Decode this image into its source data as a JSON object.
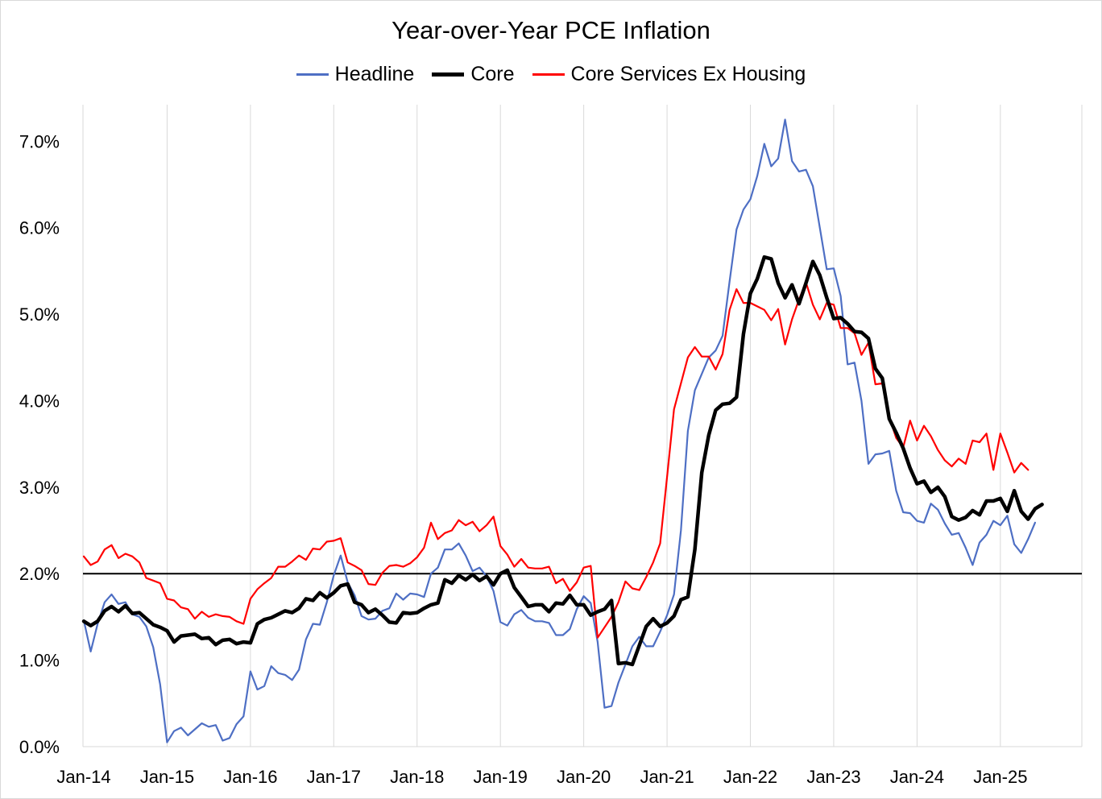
{
  "chart_data": {
    "type": "line",
    "title": "Year-over-Year PCE Inflation",
    "xlabel": "",
    "ylabel": "",
    "x_start": "2014-01",
    "x_tick_labels": [
      "Jan-14",
      "Jan-15",
      "Jan-16",
      "Jan-17",
      "Jan-18",
      "Jan-19",
      "Jan-20",
      "Jan-21",
      "Jan-22",
      "Jan-23",
      "Jan-24",
      "Jan-25"
    ],
    "y_tick_labels": [
      "0.0%",
      "1.0%",
      "2.0%",
      "3.0%",
      "4.0%",
      "5.0%",
      "6.0%",
      "7.0%"
    ],
    "ylim": [
      0,
      0.075
    ],
    "reference_line": 0.02,
    "grid": "vertical",
    "legend": "top-center",
    "series": [
      {
        "name": "Headline",
        "color": "#4e6fc4",
        "values": [
          1.46,
          1.1,
          1.42,
          1.67,
          1.76,
          1.65,
          1.67,
          1.53,
          1.5,
          1.39,
          1.15,
          0.72,
          0.05,
          0.18,
          0.22,
          0.13,
          0.2,
          0.27,
          0.23,
          0.25,
          0.07,
          0.1,
          0.26,
          0.35,
          0.87,
          0.66,
          0.7,
          0.93,
          0.85,
          0.83,
          0.77,
          0.89,
          1.24,
          1.42,
          1.41,
          1.67,
          1.98,
          2.21,
          1.9,
          1.75,
          1.51,
          1.47,
          1.48,
          1.57,
          1.6,
          1.77,
          1.7,
          1.77,
          1.76,
          1.73,
          2.0,
          2.07,
          2.28,
          2.28,
          2.35,
          2.21,
          2.03,
          2.07,
          1.97,
          1.8,
          1.44,
          1.4,
          1.53,
          1.58,
          1.49,
          1.45,
          1.45,
          1.43,
          1.29,
          1.29,
          1.36,
          1.59,
          1.74,
          1.66,
          1.21,
          0.45,
          0.47,
          0.74,
          0.95,
          1.16,
          1.27,
          1.16,
          1.16,
          1.33,
          1.52,
          1.76,
          2.5,
          3.65,
          4.12,
          4.31,
          4.5,
          4.58,
          4.75,
          5.38,
          5.98,
          6.21,
          6.33,
          6.6,
          6.97,
          6.71,
          6.8,
          7.25,
          6.77,
          6.65,
          6.67,
          6.48,
          6.0,
          5.52,
          5.53,
          5.21,
          4.42,
          4.44,
          4.0,
          3.27,
          3.38,
          3.39,
          3.42,
          2.96,
          2.71,
          2.7,
          2.61,
          2.59,
          2.81,
          2.74,
          2.58,
          2.45,
          2.47,
          2.3,
          2.1,
          2.36,
          2.45,
          2.61,
          2.56,
          2.67,
          2.34,
          2.24,
          2.4,
          2.59
        ]
      },
      {
        "name": "Core",
        "color": "#000000",
        "values": [
          1.45,
          1.4,
          1.45,
          1.57,
          1.62,
          1.56,
          1.63,
          1.54,
          1.55,
          1.48,
          1.41,
          1.38,
          1.34,
          1.21,
          1.28,
          1.29,
          1.3,
          1.25,
          1.26,
          1.18,
          1.23,
          1.24,
          1.19,
          1.21,
          1.2,
          1.42,
          1.47,
          1.49,
          1.53,
          1.57,
          1.55,
          1.6,
          1.71,
          1.69,
          1.78,
          1.72,
          1.78,
          1.86,
          1.88,
          1.67,
          1.64,
          1.55,
          1.59,
          1.52,
          1.44,
          1.43,
          1.55,
          1.54,
          1.55,
          1.6,
          1.64,
          1.66,
          1.93,
          1.89,
          1.98,
          1.93,
          1.99,
          1.92,
          1.97,
          1.87,
          2.0,
          2.04,
          1.84,
          1.73,
          1.62,
          1.64,
          1.64,
          1.56,
          1.66,
          1.65,
          1.75,
          1.64,
          1.64,
          1.52,
          1.56,
          1.59,
          1.69,
          0.96,
          0.97,
          0.95,
          1.17,
          1.39,
          1.48,
          1.39,
          1.43,
          1.51,
          1.7,
          1.73,
          2.28,
          3.17,
          3.6,
          3.89,
          3.96,
          3.97,
          4.04,
          4.77,
          5.24,
          5.41,
          5.66,
          5.64,
          5.36,
          5.19,
          5.34,
          5.12,
          5.36,
          5.61,
          5.45,
          5.19,
          4.95,
          4.96,
          4.89,
          4.8,
          4.79,
          4.72,
          4.37,
          4.26,
          3.79,
          3.63,
          3.45,
          3.22,
          3.04,
          3.07,
          2.94,
          3.0,
          2.89,
          2.66,
          2.62,
          2.65,
          2.73,
          2.68,
          2.84,
          2.84,
          2.87,
          2.72,
          2.96,
          2.72,
          2.63,
          2.75,
          2.8
        ]
      },
      {
        "name": "Core Services Ex Housing",
        "color": "#ff0000",
        "values": [
          2.2,
          2.1,
          2.14,
          2.28,
          2.33,
          2.18,
          2.23,
          2.2,
          2.13,
          1.95,
          1.92,
          1.89,
          1.71,
          1.69,
          1.61,
          1.59,
          1.48,
          1.56,
          1.5,
          1.53,
          1.51,
          1.5,
          1.45,
          1.42,
          1.71,
          1.82,
          1.89,
          1.95,
          2.08,
          2.08,
          2.14,
          2.21,
          2.16,
          2.29,
          2.28,
          2.37,
          2.38,
          2.41,
          2.13,
          2.09,
          2.04,
          1.88,
          1.87,
          2.01,
          2.09,
          2.1,
          2.08,
          2.12,
          2.19,
          2.3,
          2.59,
          2.4,
          2.47,
          2.5,
          2.62,
          2.56,
          2.6,
          2.49,
          2.56,
          2.66,
          2.32,
          2.22,
          2.08,
          2.17,
          2.07,
          2.06,
          2.06,
          2.08,
          1.89,
          1.94,
          1.8,
          1.9,
          2.07,
          2.09,
          1.26,
          1.38,
          1.5,
          1.67,
          1.91,
          1.83,
          1.81,
          1.96,
          2.13,
          2.35,
          3.12,
          3.9,
          4.2,
          4.5,
          4.62,
          4.51,
          4.51,
          4.36,
          4.54,
          5.05,
          5.29,
          5.13,
          5.13,
          5.09,
          5.05,
          4.93,
          5.06,
          4.65,
          4.94,
          5.17,
          5.37,
          5.11,
          4.94,
          5.13,
          5.11,
          4.84,
          4.84,
          4.78,
          4.53,
          4.67,
          4.19,
          4.2,
          3.81,
          3.57,
          3.46,
          3.77,
          3.54,
          3.71,
          3.59,
          3.43,
          3.31,
          3.24,
          3.33,
          3.27,
          3.54,
          3.52,
          3.62,
          3.2,
          3.62,
          3.4,
          3.17,
          3.28,
          3.2
        ]
      }
    ]
  }
}
